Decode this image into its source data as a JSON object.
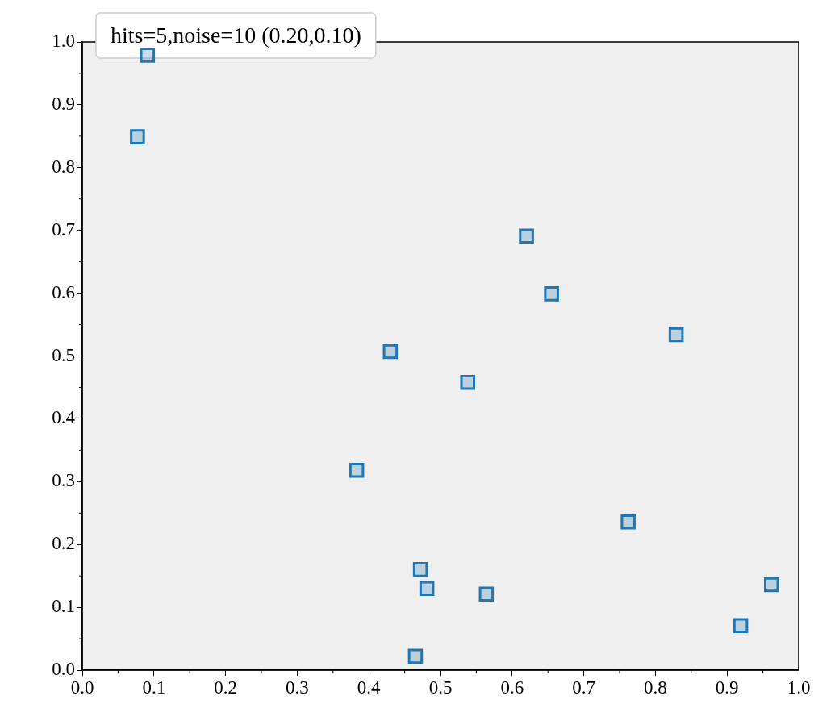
{
  "chart_data": {
    "type": "scatter",
    "marker": "square",
    "annotations": [
      "hits=5,noise=10 (0.20,0.10)"
    ],
    "xlim": [
      0,
      1
    ],
    "ylim": [
      0,
      1
    ],
    "xticks": [
      {
        "value": 0,
        "label": "0.0"
      },
      {
        "value": 0.1,
        "label": "0.1"
      },
      {
        "value": 0.2,
        "label": "0.2"
      },
      {
        "value": 0.3,
        "label": "0.3"
      },
      {
        "value": 0.4,
        "label": "0.4"
      },
      {
        "value": 0.5,
        "label": "0.5"
      },
      {
        "value": 0.6,
        "label": "0.6"
      },
      {
        "value": 0.7,
        "label": "0.7"
      },
      {
        "value": 0.8,
        "label": "0.8"
      },
      {
        "value": 0.9,
        "label": "0.9"
      },
      {
        "value": 1,
        "label": "1.0"
      }
    ],
    "yticks": [
      {
        "value": 0,
        "label": "0.0"
      },
      {
        "value": 0.1,
        "label": "0.1"
      },
      {
        "value": 0.2,
        "label": "0.2"
      },
      {
        "value": 0.3,
        "label": "0.3"
      },
      {
        "value": 0.4,
        "label": "0.4"
      },
      {
        "value": 0.5,
        "label": "0.5"
      },
      {
        "value": 0.6,
        "label": "0.6"
      },
      {
        "value": 0.7,
        "label": "0.7"
      },
      {
        "value": 0.8,
        "label": "0.8"
      },
      {
        "value": 0.9,
        "label": "0.9"
      },
      {
        "value": 1,
        "label": "1.0"
      }
    ],
    "series": [
      {
        "color": "#1f77b4",
        "x": [
          0.091,
          0.077,
          0.62,
          0.655,
          0.829,
          0.43,
          0.538,
          0.383,
          0.762,
          0.472,
          0.481,
          0.564,
          0.465,
          0.962,
          0.919
        ],
        "values": [
          0.979,
          0.849,
          0.691,
          0.599,
          0.534,
          0.507,
          0.458,
          0.318,
          0.236,
          0.16,
          0.13,
          0.121,
          0.022,
          0.136,
          0.071
        ]
      }
    ]
  }
}
